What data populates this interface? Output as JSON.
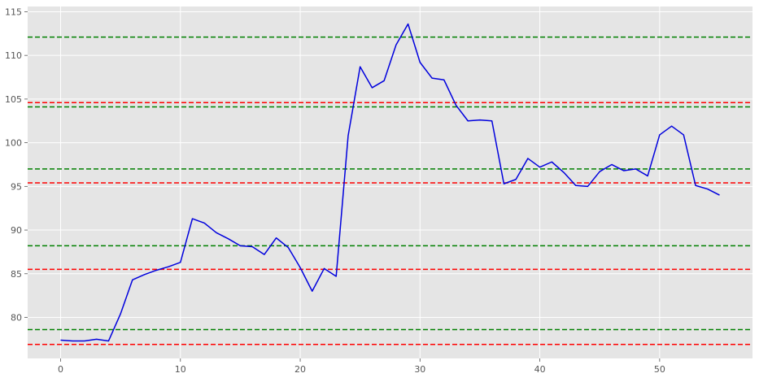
{
  "chart_data": {
    "type": "line",
    "title": "",
    "xlabel": "",
    "ylabel": "",
    "xlim": [
      -2.75,
      57.75
    ],
    "ylim": [
      75.3,
      115.6
    ],
    "x_ticks": [
      0,
      10,
      20,
      30,
      40,
      50
    ],
    "y_ticks": [
      80,
      85,
      90,
      95,
      100,
      105,
      110,
      115
    ],
    "x_tick_labels": [
      "0",
      "10",
      "20",
      "30",
      "40",
      "50"
    ],
    "y_tick_labels": [
      "80",
      "85",
      "90",
      "95",
      "100",
      "105",
      "110",
      "115"
    ],
    "grid": true,
    "style": "ggplot",
    "series": [
      {
        "color": "#0000dd",
        "x": [
          0,
          1,
          2,
          3,
          4,
          5,
          6,
          7,
          8,
          9,
          10,
          11,
          12,
          13,
          14,
          15,
          16,
          17,
          18,
          19,
          20,
          21,
          22,
          23,
          24,
          25,
          26,
          27,
          28,
          29,
          30,
          31,
          32,
          33,
          34,
          35,
          36,
          37,
          38,
          39,
          40,
          41,
          42,
          43,
          44,
          45,
          46,
          47,
          48,
          49,
          50,
          51,
          52,
          53,
          54,
          55
        ],
        "y": [
          77.4,
          77.3,
          77.3,
          77.5,
          77.3,
          80.4,
          84.3,
          84.9,
          85.4,
          85.8,
          86.3,
          91.3,
          90.8,
          89.7,
          89.0,
          88.2,
          88.1,
          87.2,
          89.1,
          88.0,
          85.7,
          83.0,
          85.6,
          84.7,
          100.8,
          108.7,
          106.3,
          107.1,
          111.2,
          113.6,
          109.2,
          107.4,
          107.2,
          104.3,
          102.5,
          102.6,
          102.5,
          95.3,
          95.8,
          98.2,
          97.2,
          97.8,
          96.6,
          95.1,
          95.0,
          96.7,
          97.5,
          96.8,
          97.0,
          96.2,
          100.9,
          101.9,
          100.9,
          95.1,
          94.7,
          94.0
        ]
      }
    ],
    "horizontal_lines": [
      {
        "y": 112.1,
        "color": "#008000",
        "style": "dashed"
      },
      {
        "y": 104.6,
        "color": "#ff0000",
        "style": "dashed"
      },
      {
        "y": 104.1,
        "color": "#008000",
        "style": "dashed"
      },
      {
        "y": 97.0,
        "color": "#008000",
        "style": "dashed"
      },
      {
        "y": 95.4,
        "color": "#ff0000",
        "style": "dashed"
      },
      {
        "y": 88.2,
        "color": "#008000",
        "style": "dashed"
      },
      {
        "y": 85.5,
        "color": "#ff0000",
        "style": "dashed"
      },
      {
        "y": 78.6,
        "color": "#008000",
        "style": "dashed"
      },
      {
        "y": 76.9,
        "color": "#ff0000",
        "style": "dashed"
      }
    ],
    "colors": {
      "background": "#e5e5e5",
      "grid": "#ffffff",
      "tick_text": "#555555",
      "line": "#0000dd"
    }
  }
}
